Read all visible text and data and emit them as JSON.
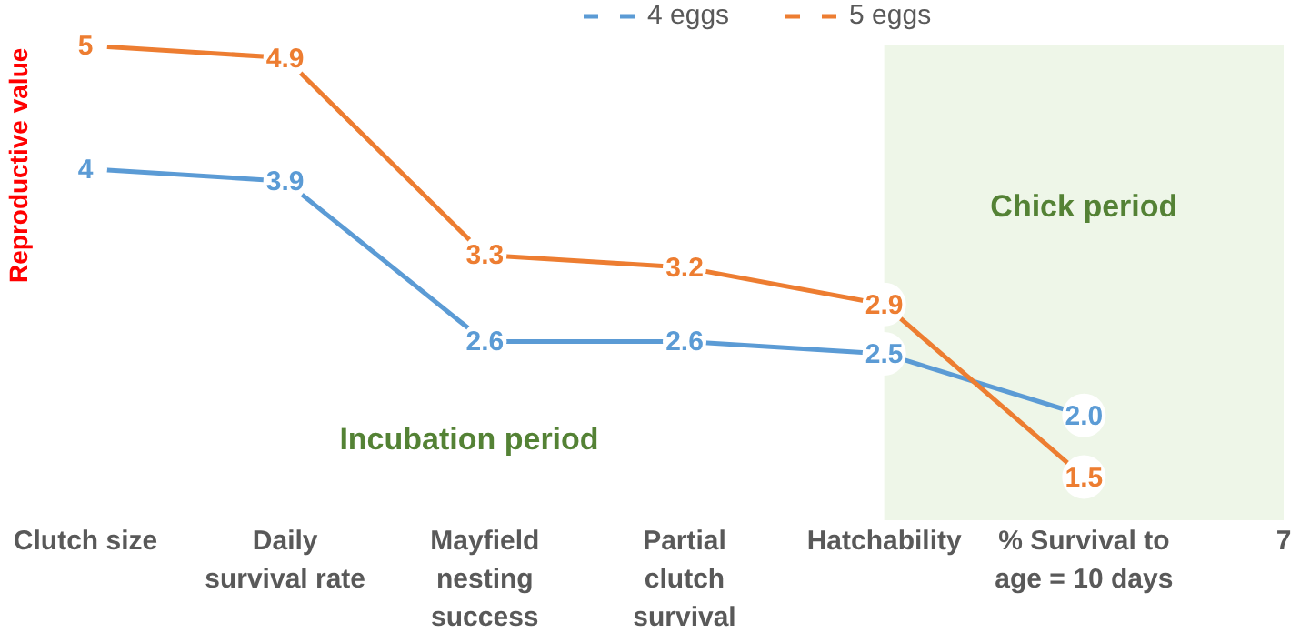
{
  "chart_data": {
    "type": "line",
    "ylabel": "Reproductive value",
    "categories": [
      "Clutch size",
      "Daily survival rate",
      "Mayfield nesting success",
      "Partial clutch survival",
      "Hatchability",
      "% Survival to age = 10 days",
      "7"
    ],
    "series": [
      {
        "name": "4 eggs",
        "color": "#5b9bd5",
        "values": [
          4,
          3.9,
          2.6,
          2.6,
          2.5,
          2.0,
          null
        ],
        "value_labels": [
          "4",
          "3.9",
          "2.6",
          "2.6",
          "2.5",
          "2.0",
          null
        ]
      },
      {
        "name": "5 eggs",
        "color": "#ed7d31",
        "values": [
          5,
          4.9,
          3.3,
          3.2,
          2.9,
          1.5,
          null
        ],
        "value_labels": [
          "5",
          "4.9",
          "3.3",
          "3.2",
          "2.9",
          "1.5",
          null
        ]
      }
    ],
    "bands": [
      {
        "axis": "x",
        "from": "Hatchability",
        "to": "7",
        "label": "Chick period",
        "color": "#eef6e8"
      }
    ],
    "annotations": [
      "Incubation period"
    ],
    "legend": "top",
    "marker": "circle",
    "line_style": "solid",
    "tick_labels": "x"
  }
}
